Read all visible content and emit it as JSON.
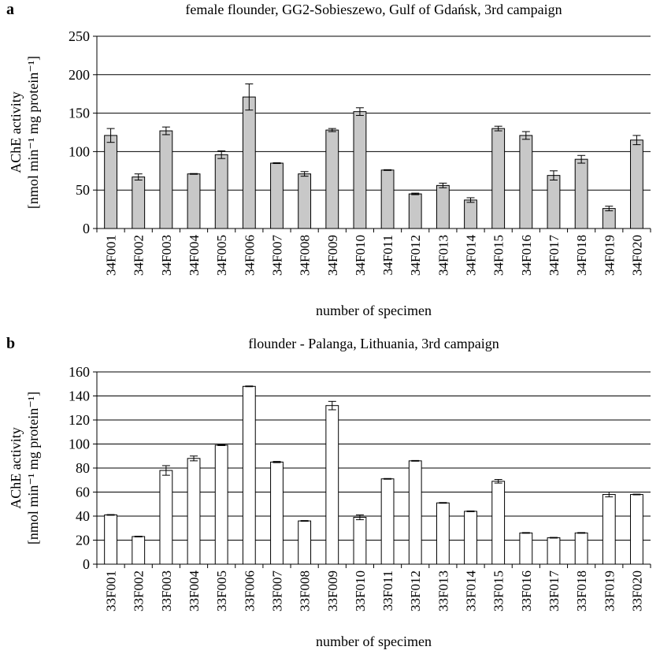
{
  "chart_data": [
    {
      "panel": "a",
      "type": "bar",
      "title": "female flounder, GG2-Sobieszewo, Gulf of Gdańsk, 3rd campaign",
      "xlabel": "number of specimen",
      "ylabel_line1": "AChE activity",
      "ylabel_line2": "[nmol min⁻¹ mg protein⁻¹]",
      "ylim": [
        0,
        250
      ],
      "yticks": [
        "0",
        "50",
        "100",
        "150",
        "200",
        "250"
      ],
      "grid": true,
      "bar_color": "#c8c8c8",
      "categories": [
        "34F001",
        "34F002",
        "34F003",
        "34F004",
        "34F005",
        "34F006",
        "34F007",
        "34F008",
        "34F009",
        "34F010",
        "34F011",
        "34F012",
        "34F013",
        "34F014",
        "34F015",
        "34F016",
        "34F017",
        "34F018",
        "34F019",
        "34F020"
      ],
      "values": [
        121,
        67,
        127,
        71,
        96,
        171,
        85,
        71,
        128,
        152,
        76,
        45,
        56,
        37,
        130,
        121,
        69,
        90,
        26,
        115
      ],
      "errors": [
        9,
        4,
        5,
        0.5,
        5,
        17,
        0.5,
        3,
        2,
        5,
        0.5,
        1,
        3,
        3,
        3,
        5,
        6,
        5,
        3,
        6
      ]
    },
    {
      "panel": "b",
      "type": "bar",
      "title": "flounder - Palanga, Lithuania, 3rd campaign",
      "xlabel": "number of specimen",
      "ylabel_line1": "AChE activity",
      "ylabel_line2": "[nmol min⁻¹ mg protein⁻¹]",
      "ylim": [
        0,
        160
      ],
      "yticks": [
        "0",
        "20",
        "40",
        "60",
        "80",
        "100",
        "120",
        "140",
        "160"
      ],
      "grid": true,
      "bar_color": "#ffffff",
      "categories": [
        "33F001",
        "33F002",
        "33F003",
        "33F004",
        "33F005",
        "33F006",
        "33F007",
        "33F008",
        "33F009",
        "33F010",
        "33F011",
        "33F012",
        "33F013",
        "33F014",
        "33F015",
        "33F016",
        "33F017",
        "33F018",
        "33F019",
        "33F020"
      ],
      "values": [
        41,
        23,
        78,
        88,
        99,
        148,
        85,
        36,
        132,
        39,
        71,
        86,
        51,
        44,
        69,
        26,
        22,
        26,
        58,
        58
      ],
      "errors": [
        0.3,
        0.3,
        4,
        2,
        0.3,
        0.3,
        0.5,
        0.3,
        3.5,
        2,
        0.3,
        0.3,
        0.3,
        0.3,
        1.5,
        0.3,
        0.3,
        0.3,
        2,
        0.3
      ]
    }
  ]
}
